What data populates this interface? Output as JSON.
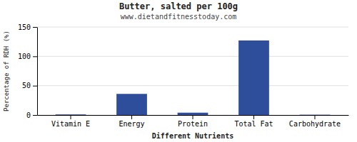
{
  "chart_data": {
    "type": "bar",
    "title": "Butter, salted per 100g",
    "subtitle": "www.dietandfitnesstoday.com",
    "xlabel": "Different Nutrients",
    "ylabel": "Percentage of RDH (%)",
    "categories": [
      "Vitamin E",
      "Energy",
      "Protein",
      "Total Fat",
      "Carbohydrate"
    ],
    "values": [
      1,
      36,
      4,
      127,
      0.5
    ],
    "color": "#2e4d9b",
    "ylim": [
      0,
      150
    ],
    "yticks": [
      0,
      50,
      100,
      150
    ],
    "grid": true
  }
}
